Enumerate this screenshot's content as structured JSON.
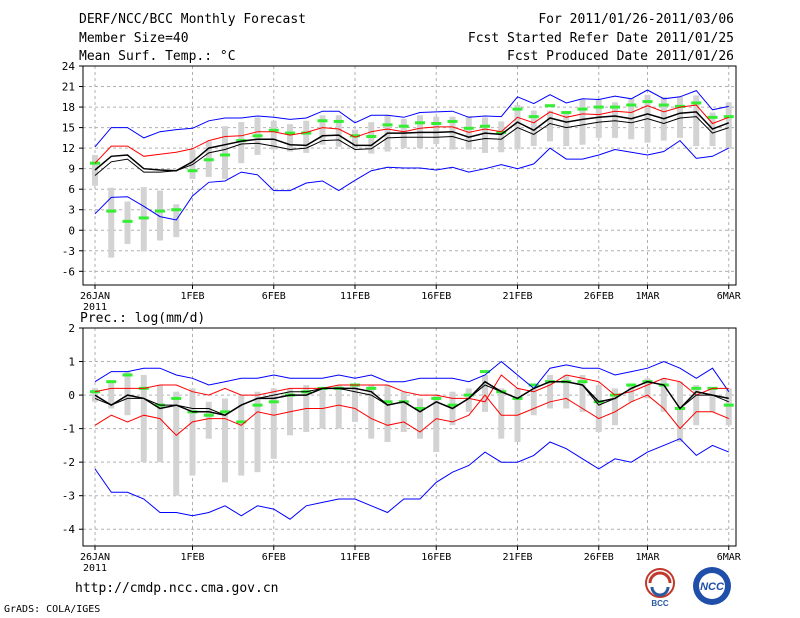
{
  "header": {
    "title": "DERF/NCC/BCC Monthly Forecast",
    "member_size": "Member Size=40",
    "variable": "Mean Surf. Temp.: °C",
    "period": "For 2011/01/26-2011/03/06",
    "started": "Fcst Started Refer Date 2011/01/25",
    "produced": "Fcst Produced Date 2011/01/26"
  },
  "footer": {
    "url": "http://cmdp.ncc.cma.gov.cn",
    "credit": "GrADS: COLA/IGES",
    "logo_left": "BCC",
    "logo_right": "NCC"
  },
  "colors": {
    "envelope": "#0000ff",
    "spread": "#ff0000",
    "mean": "#000000",
    "box": "#d3d3d3",
    "marker": "#33ee33"
  },
  "chart_data": [
    {
      "type": "line",
      "title": "Mean Surf. Temp.: °C",
      "xlabel": "",
      "ylabel": "",
      "ylim": [
        -8,
        24
      ],
      "yticks": [
        24,
        21,
        18,
        15,
        12,
        9,
        6,
        3,
        0,
        -3,
        -6
      ],
      "x_ticks": [
        {
          "day": 0,
          "label": "26JAN",
          "sub": "2011"
        },
        {
          "day": 6,
          "label": "1FEB"
        },
        {
          "day": 11,
          "label": "6FEB"
        },
        {
          "day": 16,
          "label": "11FEB"
        },
        {
          "day": 21,
          "label": "16FEB"
        },
        {
          "day": 26,
          "label": "21FEB"
        },
        {
          "day": 31,
          "label": "26FEB"
        },
        {
          "day": 34,
          "label": "1MAR"
        },
        {
          "day": 39,
          "label": "6MAR"
        }
      ],
      "series": [
        {
          "name": "max",
          "values": [
            12.2,
            15,
            15,
            13.5,
            14.4,
            14.7,
            14.9,
            16,
            16.4,
            16.4,
            16.7,
            16.5,
            16.2,
            16.4,
            17.4,
            17.4,
            15.7,
            16.8,
            16.8,
            16.5,
            17.2,
            17.3,
            17.4,
            16.5,
            16.7,
            16.6,
            19.5,
            18.5,
            19.8,
            18.6,
            19.2,
            19.1,
            19.6,
            19.2,
            20.5,
            19.2,
            19.5,
            20.4,
            17.6,
            18.1
          ]
        },
        {
          "name": "upper",
          "values": [
            9.8,
            12.3,
            12.3,
            10.8,
            11.1,
            11.4,
            11.9,
            13.1,
            13.7,
            13.8,
            14.4,
            14.4,
            13.9,
            14.3,
            15,
            14.8,
            13.6,
            14.4,
            14.8,
            14.4,
            14.9,
            15.1,
            15.1,
            14.3,
            14.8,
            14.4,
            16.5,
            15.7,
            17.3,
            16.5,
            17,
            16.9,
            17.4,
            17.2,
            18.2,
            17.3,
            18,
            18.3,
            15.6,
            16.5
          ]
        },
        {
          "name": "mean",
          "values": [
            8.8,
            10.8,
            11,
            9,
            8.8,
            8.7,
            10,
            12,
            12.5,
            13,
            13.3,
            13.3,
            12.5,
            12.4,
            13.8,
            13.9,
            12.4,
            12.4,
            14.2,
            14.2,
            14.3,
            14.3,
            14.4,
            13.6,
            14.2,
            14,
            15.8,
            14.6,
            16.4,
            15.8,
            16.2,
            16.5,
            16.7,
            16.3,
            17,
            16.3,
            17.1,
            17.3,
            14.8,
            15.7
          ]
        },
        {
          "name": "lower",
          "values": [
            8,
            10,
            10.4,
            8.5,
            8.5,
            8.7,
            9.6,
            11.3,
            11.8,
            12.6,
            12.7,
            12.3,
            11.8,
            12,
            13.1,
            13.2,
            11.8,
            11.9,
            13.5,
            13.6,
            13.6,
            13.6,
            13.7,
            13,
            13.4,
            13.3,
            15,
            14,
            15.6,
            15,
            15.4,
            15.8,
            16,
            15.7,
            16.3,
            15.6,
            16.4,
            16.6,
            14.2,
            15
          ]
        },
        {
          "name": "min",
          "values": [
            2.4,
            4.8,
            4.9,
            3.5,
            2,
            1.5,
            5,
            7,
            7.2,
            8.5,
            8.1,
            5.8,
            5.8,
            6.9,
            7.2,
            5.8,
            7.3,
            8.7,
            9.2,
            9.1,
            9.1,
            8.8,
            9.2,
            8.5,
            9,
            9.6,
            9,
            9.7,
            12,
            10.4,
            10.4,
            11,
            11.8,
            11.4,
            11,
            11.5,
            13.1,
            10.5,
            10.8,
            12
          ]
        }
      ],
      "box_low": [
        6.5,
        -4,
        -2,
        -3.1,
        -1.5,
        -1,
        7.5,
        7.8,
        7.5,
        9.8,
        11,
        11.8,
        11.5,
        11.3,
        12.5,
        12.2,
        12,
        11.2,
        11.5,
        12,
        12,
        12.6,
        11.8,
        11.8,
        11.3,
        11.4,
        11.8,
        12.3,
        13,
        12.3,
        12.5,
        13.5,
        13.5,
        13.3,
        12.8,
        13.1,
        13.5,
        12.3,
        12.3,
        11.9
      ],
      "box_high": [
        11,
        6.2,
        4.2,
        6.3,
        5.8,
        3.8,
        11.8,
        13,
        15.2,
        15.8,
        16.5,
        16,
        15.5,
        16,
        16.8,
        16.8,
        14.7,
        15.8,
        16.8,
        16.3,
        16.8,
        16.6,
        16.6,
        16.7,
        16.5,
        15.9,
        18.3,
        17.5,
        17.5,
        17,
        19.2,
        19.2,
        18.7,
        19.2,
        19.8,
        19.5,
        19.5,
        19.7,
        17.2,
        18.7
      ],
      "marker": [
        9.8,
        2.8,
        1.3,
        1.8,
        2.8,
        3,
        8.7,
        10.3,
        11,
        13.1,
        13.8,
        14.6,
        14.2,
        14.2,
        16,
        15.9,
        13.8,
        13.7,
        15.4,
        15.2,
        15.7,
        15.6,
        15.9,
        14.9,
        15.2,
        14.3,
        17.7,
        16.6,
        18.2,
        17.2,
        17.7,
        18,
        18,
        18.3,
        18.8,
        18.3,
        18.1,
        18.6,
        16.5,
        16.6
      ]
    },
    {
      "type": "line",
      "title": "Prec.: log(mm/d)",
      "xlabel": "",
      "ylabel": "",
      "ylim": [
        -4.5,
        2
      ],
      "yticks": [
        2,
        1,
        0,
        -1,
        -2,
        -3,
        -4
      ],
      "x_ticks": [
        {
          "day": 0,
          "label": "26JAN",
          "sub": "2011"
        },
        {
          "day": 6,
          "label": "1FEB"
        },
        {
          "day": 11,
          "label": "6FEB"
        },
        {
          "day": 16,
          "label": "11FEB"
        },
        {
          "day": 21,
          "label": "16FEB"
        },
        {
          "day": 26,
          "label": "21FEB"
        },
        {
          "day": 31,
          "label": "26FEB"
        },
        {
          "day": 34,
          "label": "1MAR"
        },
        {
          "day": 39,
          "label": "6MAR"
        }
      ],
      "series": [
        {
          "name": "max",
          "values": [
            0.4,
            0.7,
            0.7,
            0.8,
            0.8,
            0.6,
            0.5,
            0.3,
            0.4,
            0.5,
            0.5,
            0.6,
            0.5,
            0.5,
            0.5,
            0.6,
            0.5,
            0.6,
            0.4,
            0.4,
            0.5,
            0.5,
            0.5,
            0.4,
            0.6,
            1,
            0.6,
            0.2,
            0.8,
            0.9,
            0.8,
            0.8,
            0.6,
            0.7,
            0.8,
            1,
            0.8,
            0.5,
            0.8,
            0.1
          ]
        },
        {
          "name": "upper",
          "values": [
            0.1,
            0.2,
            0.2,
            0.2,
            0.3,
            0.3,
            0.1,
            0,
            0.2,
            0,
            0,
            0.1,
            0.2,
            0.2,
            0.2,
            0.3,
            0.3,
            0.3,
            0.3,
            0.1,
            0,
            0,
            -0.1,
            -0.1,
            -0.2,
            0.6,
            0.2,
            0.1,
            0.3,
            0.6,
            0.5,
            0.4,
            0,
            0.1,
            0.3,
            0.5,
            0.4,
            0,
            0.2,
            0.2
          ]
        },
        {
          "name": "mean",
          "values": [
            0,
            -0.3,
            0,
            -0.1,
            -0.4,
            -0.3,
            -0.5,
            -0.5,
            -0.6,
            -0.3,
            -0.1,
            -0.1,
            0,
            0,
            0.2,
            0.2,
            0.2,
            0.1,
            -0.3,
            -0.2,
            -0.5,
            -0.2,
            -0.4,
            -0.1,
            0.4,
            0.1,
            -0.1,
            0.2,
            0.4,
            0.4,
            0.3,
            -0.2,
            -0.1,
            0.2,
            0.4,
            0.3,
            -0.4,
            0.1,
            0,
            -0.1
          ]
        },
        {
          "name": "lower",
          "values": [
            -0.1,
            -0.3,
            -0.1,
            -0.1,
            -0.3,
            -0.3,
            -0.4,
            -0.4,
            -0.6,
            -0.3,
            -0.1,
            0,
            0.1,
            0.1,
            0.2,
            0.2,
            0.1,
            0,
            -0.3,
            -0.2,
            -0.5,
            -0.2,
            -0.4,
            -0.1,
            0.3,
            0.1,
            -0.1,
            0.2,
            0.4,
            0.4,
            0.3,
            -0.3,
            -0.1,
            0.2,
            0.4,
            0.3,
            -0.4,
            0,
            0,
            -0.2
          ]
        },
        {
          "name": "low",
          "values": [
            -0.9,
            -0.6,
            -0.8,
            -0.6,
            -0.7,
            -1.2,
            -0.8,
            -0.7,
            -0.7,
            -0.9,
            -0.5,
            -0.6,
            -0.5,
            -0.4,
            -0.4,
            -0.3,
            -0.4,
            -0.7,
            -0.9,
            -0.8,
            -1.1,
            -0.7,
            -0.8,
            -0.6,
            0,
            -0.6,
            -0.6,
            -0.4,
            -0.2,
            -0.1,
            -0.4,
            -0.7,
            -0.5,
            -0.2,
            0,
            -0.4,
            -1,
            -0.5,
            -0.5,
            -0.7
          ]
        },
        {
          "name": "min",
          "values": [
            -2.2,
            -2.9,
            -2.9,
            -3.1,
            -3.5,
            -3.5,
            -3.6,
            -3.5,
            -3.3,
            -3.6,
            -3.3,
            -3.4,
            -3.7,
            -3.3,
            -3.2,
            -3.1,
            -3.1,
            -3.3,
            -3.5,
            -3.1,
            -3.1,
            -2.6,
            -2.3,
            -2.1,
            -1.7,
            -2,
            -2,
            -1.8,
            -1.4,
            -1.6,
            -1.9,
            -2.2,
            -1.9,
            -2,
            -1.7,
            -1.5,
            -1.3,
            -1.8,
            -1.5,
            -1.7
          ]
        }
      ],
      "box_low": [
        -0.2,
        -0.4,
        -0.6,
        -2,
        -2,
        -3,
        -2.4,
        -1.3,
        -2.6,
        -2.4,
        -2.3,
        -1.9,
        -1.2,
        -1.1,
        -1,
        -1,
        -0.8,
        -1.3,
        -1.4,
        -1.1,
        -1.3,
        -1.7,
        -0.9,
        -0.5,
        -0.5,
        -1.3,
        -1.4,
        -0.6,
        -0.4,
        -0.4,
        -0.5,
        -1.1,
        -0.9,
        -0.2,
        -0.1,
        -0.5,
        -1.4,
        -0.9,
        -0.5,
        -0.9
      ],
      "box_high": [
        0.2,
        0.4,
        0.7,
        0.6,
        0.3,
        0.1,
        0.2,
        -0.2,
        -0.1,
        0,
        0.1,
        0.2,
        0.2,
        0.3,
        0.2,
        0.3,
        0.3,
        0.3,
        0.3,
        0.1,
        -0.1,
        0,
        0.1,
        0.2,
        0.6,
        0.2,
        0.2,
        0.2,
        0.6,
        0.6,
        0.6,
        0.3,
        0.2,
        0.3,
        0.5,
        0.5,
        0.4,
        0.3,
        0.2,
        0.2
      ],
      "marker": [
        0.1,
        0.4,
        0.6,
        0.2,
        -0.3,
        -0.1,
        -0.5,
        -0.6,
        -0.5,
        -0.8,
        -0.3,
        -0.2,
        0,
        0.1,
        0.2,
        0.2,
        0.3,
        0.2,
        -0.2,
        -0.2,
        -0.4,
        -0.1,
        -0.3,
        0,
        0.7,
        0.1,
        -0.1,
        0.3,
        0.4,
        0.4,
        0.4,
        -0.2,
        0,
        0.3,
        0.4,
        0.3,
        -0.4,
        0.2,
        0.2,
        -0.3
      ]
    }
  ]
}
